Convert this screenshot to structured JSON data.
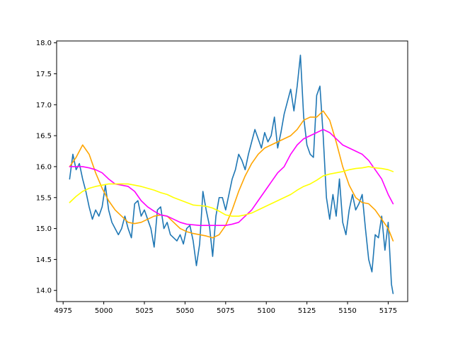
{
  "chart_data": {
    "type": "line",
    "title": "",
    "xlabel": "",
    "ylabel": "",
    "xlim": [
      4971,
      5187
    ],
    "ylim": [
      13.82,
      18.03
    ],
    "xticks": [
      4975,
      5000,
      5025,
      5050,
      5075,
      5100,
      5125,
      5150,
      5175
    ],
    "yticks": [
      14.0,
      14.5,
      15.0,
      15.5,
      16.0,
      16.5,
      17.0,
      17.5,
      18.0
    ],
    "grid": false,
    "legend": "none",
    "series": [
      {
        "color": "#1f77b4",
        "x": [
          4979,
          4981,
          4983,
          4985,
          4987,
          4989,
          4991,
          4993,
          4995,
          4997,
          4999,
          5001,
          5003,
          5005,
          5007,
          5009,
          5011,
          5013,
          5015,
          5017,
          5019,
          5021,
          5023,
          5025,
          5027,
          5029,
          5031,
          5033,
          5035,
          5037,
          5039,
          5041,
          5043,
          5045,
          5047,
          5049,
          5051,
          5053,
          5055,
          5057,
          5059,
          5061,
          5063,
          5065,
          5067,
          5069,
          5071,
          5073,
          5075,
          5077,
          5079,
          5081,
          5083,
          5085,
          5087,
          5089,
          5091,
          5093,
          5095,
          5097,
          5099,
          5101,
          5103,
          5105,
          5107,
          5109,
          5111,
          5113,
          5115,
          5117,
          5119,
          5121,
          5123,
          5125,
          5127,
          5129,
          5131,
          5133,
          5135,
          5137,
          5139,
          5141,
          5143,
          5145,
          5147,
          5149,
          5151,
          5153,
          5155,
          5157,
          5159,
          5161,
          5163,
          5165,
          5167,
          5169,
          5171,
          5173,
          5175,
          5177,
          5178
        ],
        "y": [
          15.8,
          16.2,
          15.95,
          16.05,
          15.8,
          15.6,
          15.35,
          15.15,
          15.3,
          15.2,
          15.35,
          15.7,
          15.3,
          15.1,
          15.0,
          14.9,
          15.0,
          15.2,
          15.0,
          14.85,
          15.4,
          15.45,
          15.2,
          15.3,
          15.15,
          15.0,
          14.7,
          15.3,
          15.35,
          15.0,
          15.1,
          14.9,
          14.85,
          14.8,
          14.9,
          14.75,
          15.0,
          15.05,
          14.8,
          14.4,
          14.75,
          15.6,
          15.3,
          15.05,
          14.55,
          15.2,
          15.5,
          15.5,
          15.3,
          15.55,
          15.8,
          15.95,
          16.2,
          16.1,
          15.95,
          16.2,
          16.4,
          16.6,
          16.45,
          16.3,
          16.55,
          16.4,
          16.5,
          16.8,
          16.3,
          16.55,
          16.85,
          17.05,
          17.25,
          16.9,
          17.3,
          17.8,
          16.8,
          16.35,
          16.2,
          16.15,
          17.15,
          17.3,
          16.5,
          15.5,
          15.15,
          15.55,
          15.2,
          15.8,
          15.1,
          14.9,
          15.3,
          15.55,
          15.3,
          15.4,
          15.55,
          15.0,
          14.5,
          14.3,
          14.9,
          14.85,
          15.2,
          14.65,
          15.1,
          14.1,
          13.95
        ]
      },
      {
        "color": "#ffa500",
        "x": [
          4979,
          4983,
          4987,
          4991,
          4995,
          4999,
          5003,
          5007,
          5011,
          5015,
          5019,
          5023,
          5027,
          5031,
          5035,
          5039,
          5043,
          5047,
          5051,
          5055,
          5059,
          5063,
          5067,
          5071,
          5075,
          5079,
          5083,
          5087,
          5091,
          5095,
          5099,
          5103,
          5107,
          5111,
          5115,
          5119,
          5123,
          5127,
          5131,
          5135,
          5139,
          5143,
          5147,
          5151,
          5155,
          5159,
          5163,
          5167,
          5171,
          5175,
          5178
        ],
        "y": [
          16.0,
          16.15,
          16.35,
          16.2,
          15.9,
          15.65,
          15.45,
          15.3,
          15.2,
          15.1,
          15.08,
          15.1,
          15.15,
          15.2,
          15.22,
          15.2,
          15.1,
          15.0,
          14.95,
          14.92,
          14.9,
          14.88,
          14.85,
          14.9,
          15.05,
          15.3,
          15.6,
          15.85,
          16.05,
          16.2,
          16.3,
          16.35,
          16.4,
          16.45,
          16.5,
          16.6,
          16.75,
          16.8,
          16.8,
          16.9,
          16.75,
          16.4,
          16.0,
          15.7,
          15.5,
          15.42,
          15.4,
          15.3,
          15.15,
          15.0,
          14.8
        ]
      },
      {
        "color": "#ff00ff",
        "x": [
          4979,
          4983,
          4987,
          4991,
          4995,
          4999,
          5003,
          5007,
          5011,
          5015,
          5019,
          5023,
          5027,
          5031,
          5035,
          5039,
          5043,
          5047,
          5051,
          5055,
          5059,
          5063,
          5067,
          5071,
          5075,
          5079,
          5083,
          5087,
          5091,
          5095,
          5099,
          5103,
          5107,
          5111,
          5115,
          5119,
          5123,
          5127,
          5131,
          5135,
          5139,
          5143,
          5147,
          5151,
          5155,
          5159,
          5163,
          5167,
          5171,
          5175,
          5178
        ],
        "y": [
          16.0,
          16.0,
          16.0,
          15.98,
          15.95,
          15.9,
          15.8,
          15.72,
          15.7,
          15.68,
          15.6,
          15.45,
          15.35,
          15.28,
          15.22,
          15.2,
          15.15,
          15.1,
          15.07,
          15.06,
          15.05,
          15.05,
          15.05,
          15.05,
          15.05,
          15.07,
          15.1,
          15.2,
          15.3,
          15.45,
          15.6,
          15.75,
          15.9,
          16.0,
          16.2,
          16.35,
          16.45,
          16.5,
          16.55,
          16.6,
          16.55,
          16.45,
          16.35,
          16.3,
          16.25,
          16.2,
          16.1,
          15.95,
          15.8,
          15.55,
          15.4
        ]
      },
      {
        "color": "#ffff00",
        "x": [
          4979,
          4983,
          4987,
          4991,
          4995,
          4999,
          5003,
          5007,
          5011,
          5015,
          5019,
          5023,
          5027,
          5031,
          5035,
          5039,
          5043,
          5047,
          5051,
          5055,
          5059,
          5063,
          5067,
          5071,
          5075,
          5079,
          5083,
          5087,
          5091,
          5095,
          5099,
          5103,
          5107,
          5111,
          5115,
          5119,
          5123,
          5127,
          5131,
          5135,
          5139,
          5143,
          5147,
          5151,
          5155,
          5159,
          5163,
          5167,
          5171,
          5175,
          5178
        ],
        "y": [
          15.42,
          15.52,
          15.6,
          15.65,
          15.68,
          15.7,
          15.72,
          15.72,
          15.72,
          15.72,
          15.7,
          15.68,
          15.65,
          15.62,
          15.58,
          15.55,
          15.5,
          15.46,
          15.42,
          15.38,
          15.37,
          15.36,
          15.33,
          15.28,
          15.22,
          15.2,
          15.2,
          15.22,
          15.25,
          15.3,
          15.35,
          15.4,
          15.45,
          15.5,
          15.55,
          15.62,
          15.68,
          15.72,
          15.78,
          15.85,
          15.88,
          15.9,
          15.92,
          15.95,
          15.97,
          15.98,
          16.0,
          15.98,
          15.97,
          15.95,
          15.92
        ]
      }
    ]
  }
}
